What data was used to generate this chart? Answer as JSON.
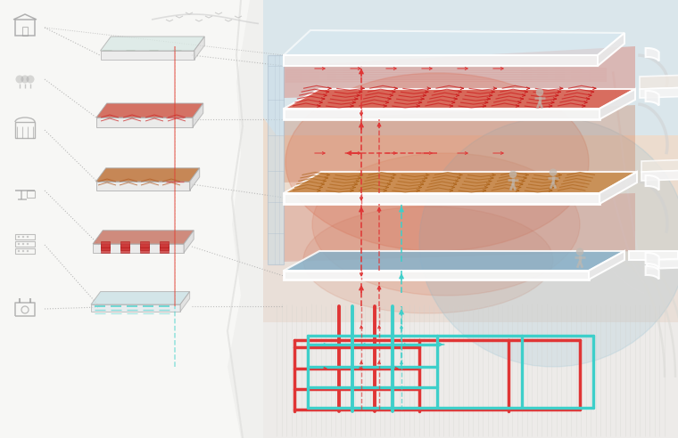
{
  "bg_color": "#f0f0ee",
  "white": "#ffffff",
  "red_hot": "#e03030",
  "red_warm": "#e86050",
  "red_pipe": "#e03535",
  "cyan_pipe": "#3ecfca",
  "cyan_light": "#60d8d0",
  "orange_floor": "#d09050",
  "orange_light": "#e0a860",
  "blue_cool": "#88c0d0",
  "blue_ground": "#70b0c8",
  "slab_white": "#f5f5f5",
  "slab_edge": "#e8e8e8",
  "slab_side": "#e0dedd",
  "glass_blue": "#b8d8e8",
  "sky_top": "#c0dce8",
  "sky_bottom": "#d8ead0",
  "warm_glow1": "#e87050",
  "warm_glow2": "#e09060",
  "cool_glow": "#90c8d8",
  "building_bg": "#e8c8b0",
  "wall_gray": "#d0d0d0",
  "icon_gray": "#999999",
  "dotted_gray": "#999999",
  "left_bg": "#f8f8f6",
  "thumb_red": "#d06858",
  "thumb_orange": "#c88050",
  "thumb_gray": "#c8c8c8",
  "thumb_blue": "#88b8c8",
  "underground_lines": "#d8d8d8"
}
